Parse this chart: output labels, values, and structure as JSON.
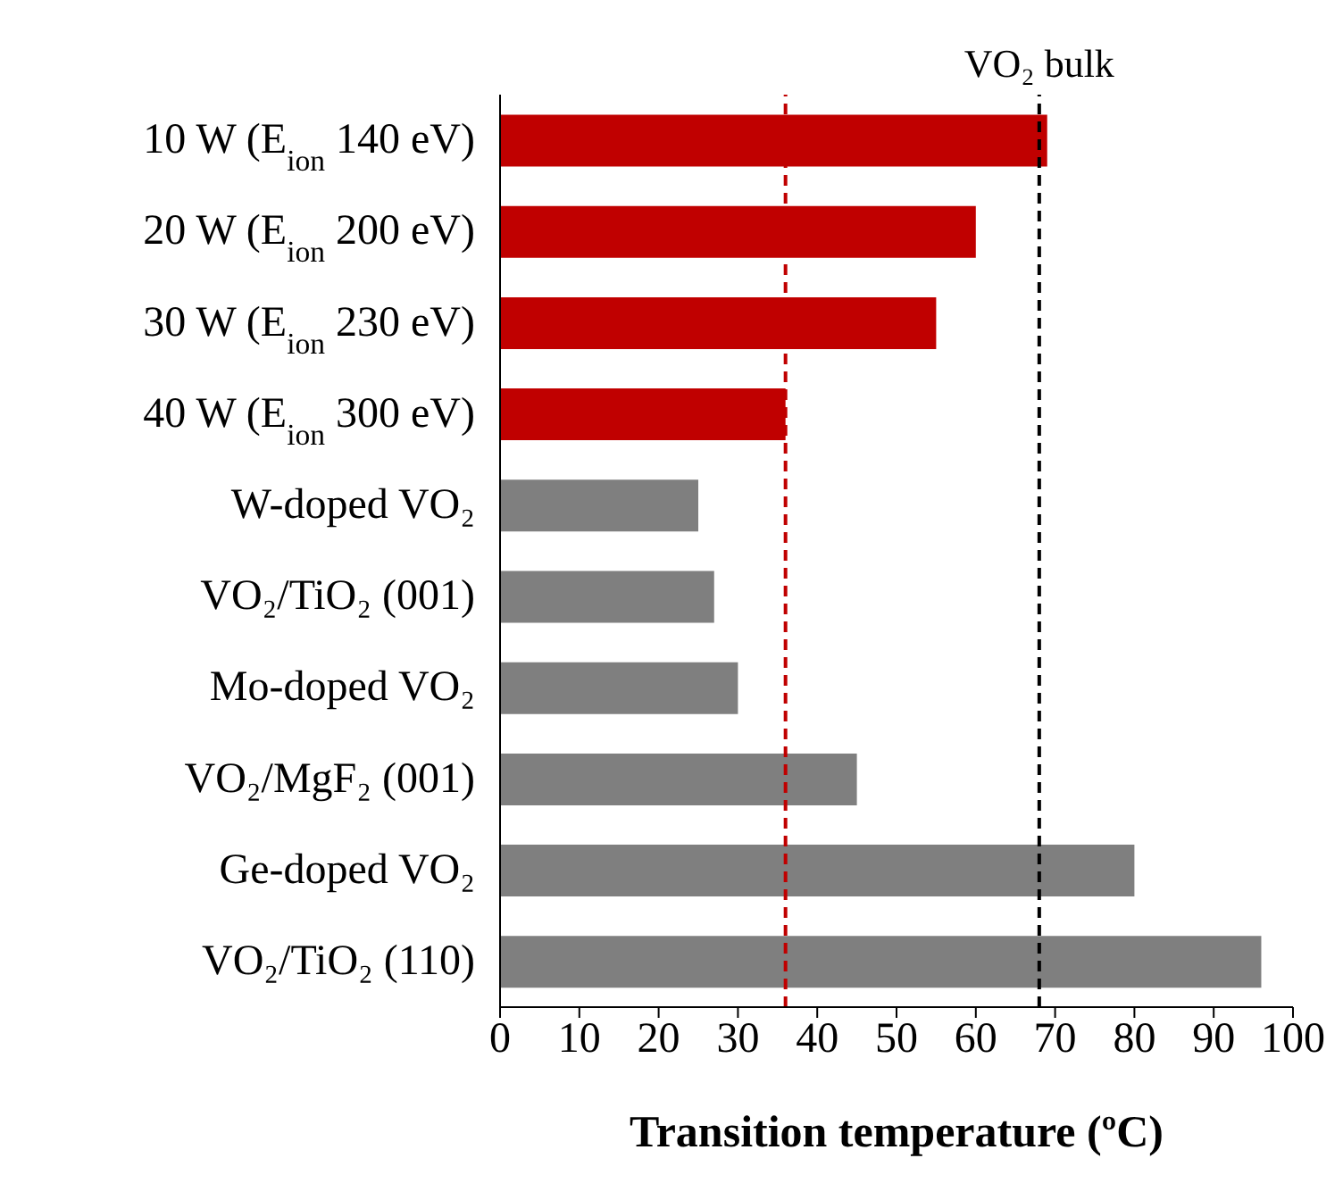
{
  "chart_data": {
    "type": "bar",
    "orientation": "horizontal",
    "categories": [
      "10 W (E$_{ion}$ 140 eV)",
      "20 W (E$_{ion}$ 200 eV)",
      "30 W (E$_{ion}$ 230 eV)",
      "40 W (E$_{ion}$ 300 eV)",
      "W-doped VO₂",
      "VO₂/TiO₂ (001)",
      "Mo-doped VO₂",
      "VO₂/MgF₂ (001)",
      "Ge-doped VO₂",
      "VO₂/TiO₂ (110)"
    ],
    "values": [
      69,
      60,
      55,
      36,
      25,
      27,
      30,
      45,
      80,
      96
    ],
    "colors": [
      "#c00000",
      "#c00000",
      "#c00000",
      "#c00000",
      "#7f7f7f",
      "#7f7f7f",
      "#7f7f7f",
      "#7f7f7f",
      "#7f7f7f",
      "#7f7f7f"
    ],
    "xlabel": "Transition temperature (ºC)",
    "xlim": [
      0,
      100
    ],
    "xticks": [
      0,
      10,
      20,
      30,
      40,
      50,
      60,
      70,
      80,
      90,
      100
    ],
    "ref_lines": [
      {
        "axis": "x",
        "value": 68,
        "label": "VO₂ bulk",
        "color": "#000000",
        "line_style": "dashed"
      },
      {
        "axis": "x",
        "value": 36,
        "label": null,
        "color": "#c00000",
        "line_style": "dashed"
      }
    ]
  }
}
